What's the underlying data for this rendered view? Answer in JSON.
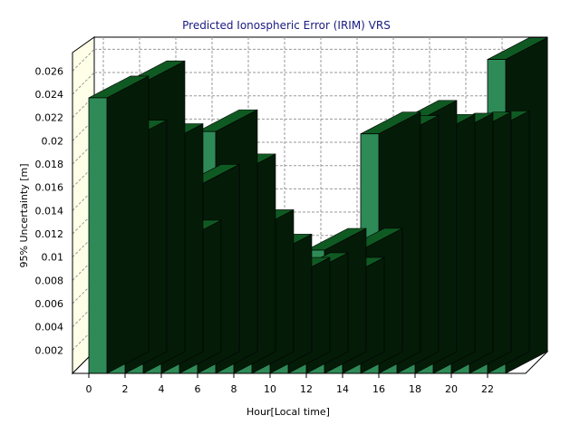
{
  "chart_data": {
    "type": "bar",
    "title": "Predicted Ionospheric Error (IRIM) VRS",
    "xlabel": "Hour[Local time]",
    "ylabel": "95% Uncertainty [m]",
    "x": [
      0,
      1,
      2,
      3,
      4,
      5,
      6,
      7,
      8,
      9,
      10,
      11,
      12,
      13,
      14,
      15,
      16,
      17,
      18,
      19,
      20,
      21,
      22
    ],
    "x_tick_labels": [
      "0",
      "2",
      "4",
      "6",
      "8",
      "10",
      "12",
      "14",
      "16",
      "18",
      "20",
      "22"
    ],
    "values": [
      0.0237,
      0.0199,
      0.025,
      0.0196,
      0.0113,
      0.0161,
      0.0208,
      0.017,
      0.0122,
      0.0101,
      0.0081,
      0.0085,
      0.0106,
      0.0081,
      0.0106,
      0.0206,
      0.0203,
      0.0216,
      0.0204,
      0.0205,
      0.0206,
      0.0207,
      0.027
    ],
    "y_tick_labels": [
      "0.002",
      "0.004",
      "0.006",
      "0.008",
      "0.01",
      "0.012",
      "0.014",
      "0.016",
      "0.018",
      "0.02",
      "0.022",
      "0.024",
      "0.026"
    ],
    "y_ticks": [
      0.002,
      0.004,
      0.006,
      0.008,
      0.01,
      0.012,
      0.014,
      0.016,
      0.018,
      0.02,
      0.022,
      0.024,
      0.026
    ],
    "ylim": [
      0,
      0.0272
    ],
    "grid": true,
    "legend": "none",
    "style": "3d",
    "colors": {
      "bar_front": "#2e8b57",
      "bar_top": "#0f5a22",
      "bar_side": "#041b08",
      "back_wall": "#ffffff",
      "side_wall": "#ffffe8",
      "grid": "#9a9a9a",
      "title": "#1a1a80"
    }
  }
}
